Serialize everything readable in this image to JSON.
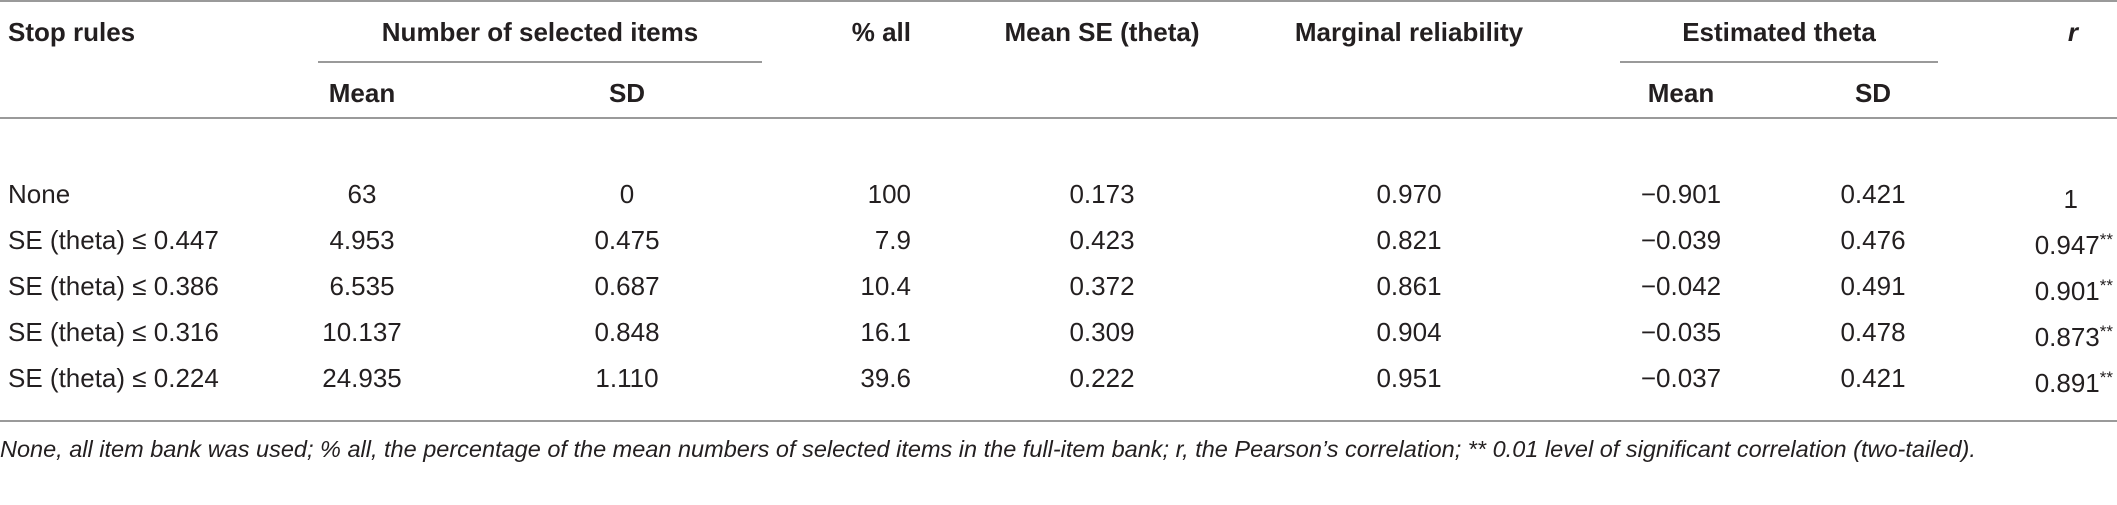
{
  "header": {
    "stop_rules": "Stop rules",
    "num_selected": "Number of selected items",
    "pct_all": "% all",
    "mean_se": "Mean SE (theta)",
    "marginal_rel": "Marginal reliability",
    "est_theta": "Estimated theta",
    "r": "r",
    "sub_mean_1": "Mean",
    "sub_sd_1": "SD",
    "sub_mean_2": "Mean",
    "sub_sd_2": "SD"
  },
  "rows": [
    {
      "rule": "None",
      "n_mean": "63",
      "n_sd": "0",
      "pct": "100",
      "mean_se": "0.173",
      "rel": "0.970",
      "th_mean": "−0.901",
      "th_sd": "0.421",
      "r": "1",
      "sig": ""
    },
    {
      "rule": "SE (theta) ≤ 0.447",
      "n_mean": "4.953",
      "n_sd": "0.475",
      "pct": "7.9",
      "mean_se": "0.423",
      "rel": "0.821",
      "th_mean": "−0.039",
      "th_sd": "0.476",
      "r": "0.947",
      "sig": "**"
    },
    {
      "rule": "SE (theta) ≤ 0.386",
      "n_mean": "6.535",
      "n_sd": "0.687",
      "pct": "10.4",
      "mean_se": "0.372",
      "rel": "0.861",
      "th_mean": "−0.042",
      "th_sd": "0.491",
      "r": "0.901",
      "sig": "**"
    },
    {
      "rule": "SE (theta) ≤ 0.316",
      "n_mean": "10.137",
      "n_sd": "0.848",
      "pct": "16.1",
      "mean_se": "0.309",
      "rel": "0.904",
      "th_mean": "−0.035",
      "th_sd": "0.478",
      "r": "0.873",
      "sig": "**"
    },
    {
      "rule": "SE (theta) ≤ 0.224",
      "n_mean": "24.935",
      "n_sd": "1.110",
      "pct": "39.6",
      "mean_se": "0.222",
      "rel": "0.951",
      "th_mean": "−0.037",
      "th_sd": "0.421",
      "r": "0.891",
      "sig": "**"
    }
  ],
  "footnote": "None, all item bank was used; % all, the percentage of the mean numbers of selected items in the full-item bank; r, the Pearson’s correlation; ** 0.01 level of significant correlation (two-tailed)."
}
